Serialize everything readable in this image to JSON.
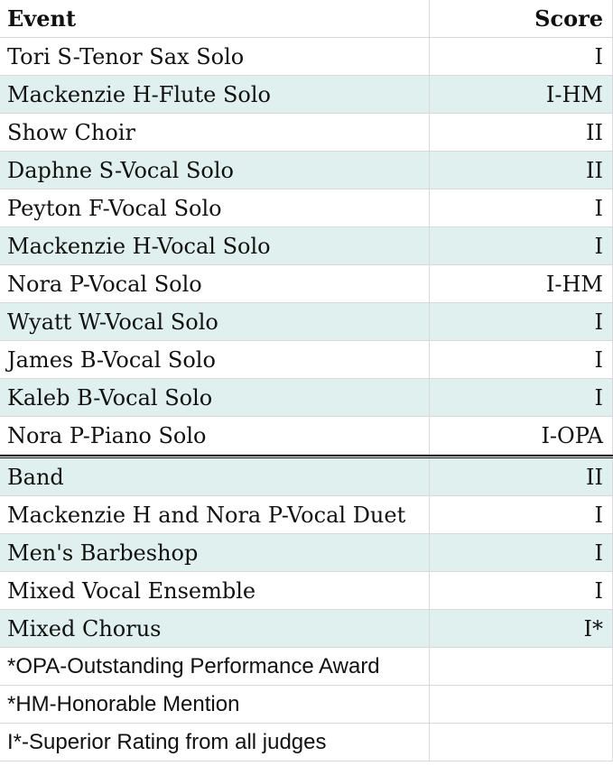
{
  "table": {
    "header": [
      "Event",
      "Score"
    ],
    "groups": [
      {
        "rows": [
          [
            "Tori S-Tenor Sax Solo",
            "I"
          ],
          [
            "Mackenzie H-Flute Solo",
            "I-HM"
          ],
          [
            "Show Choir",
            "II"
          ],
          [
            "Daphne S-Vocal Solo",
            "II"
          ],
          [
            "Peyton F-Vocal Solo",
            "I"
          ],
          [
            "Mackenzie H-Vocal Solo",
            "I"
          ],
          [
            "Nora P-Vocal Solo",
            "I-HM"
          ],
          [
            "Wyatt W-Vocal Solo",
            "I"
          ],
          [
            "James B-Vocal Solo",
            "I"
          ],
          [
            "Kaleb B-Vocal Solo",
            "I"
          ],
          [
            "Nora P-Piano Solo",
            "I-OPA"
          ]
        ]
      },
      {
        "rows": [
          [
            "Band",
            "II"
          ],
          [
            "Mackenzie H and Nora P-Vocal Duet",
            "I"
          ],
          [
            "Men's Barbeshop",
            "I"
          ],
          [
            "Mixed Vocal Ensemble",
            "I"
          ],
          [
            "Mixed Chorus",
            "I*"
          ]
        ]
      }
    ],
    "notes": [
      "*OPA-Outstanding Performance Award",
      "*HM-Honorable Mention",
      "I*-Superior Rating from all judges"
    ]
  }
}
